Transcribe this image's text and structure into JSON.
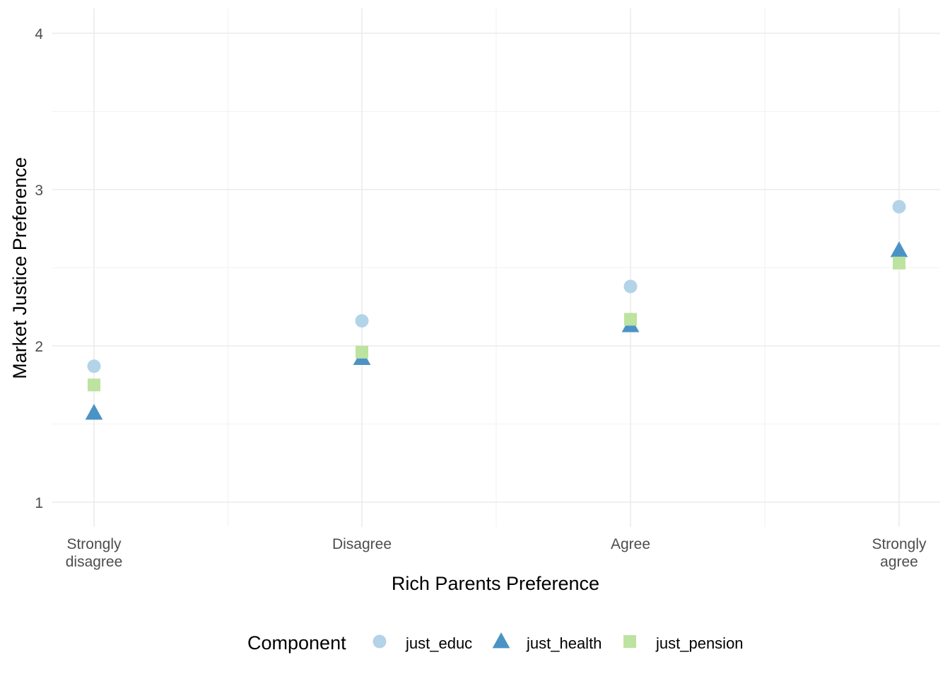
{
  "chart_data": {
    "type": "scatter",
    "title": "",
    "xlabel": "Rich Parents Preference",
    "ylabel": "Market Justice Preference",
    "categories": [
      "Strongly\ndisagree",
      "Disagree",
      "Agree",
      "Strongly\nagree"
    ],
    "ylim": [
      0.85,
      4.1
    ],
    "yticks": [
      1,
      2,
      3,
      4
    ],
    "grid": true,
    "legend": {
      "title": "Component",
      "position": "bottom"
    },
    "series": [
      {
        "name": "just_educ",
        "shape": "circle",
        "color": "#b3d3e8",
        "values": [
          1.87,
          2.16,
          2.38,
          2.89
        ]
      },
      {
        "name": "just_health",
        "shape": "triangle",
        "color": "#4b93c5",
        "values": [
          1.57,
          1.92,
          2.13,
          2.61
        ]
      },
      {
        "name": "just_pension",
        "shape": "square",
        "color": "#bde3a0",
        "values": [
          1.75,
          1.96,
          2.17,
          2.53
        ]
      }
    ]
  }
}
